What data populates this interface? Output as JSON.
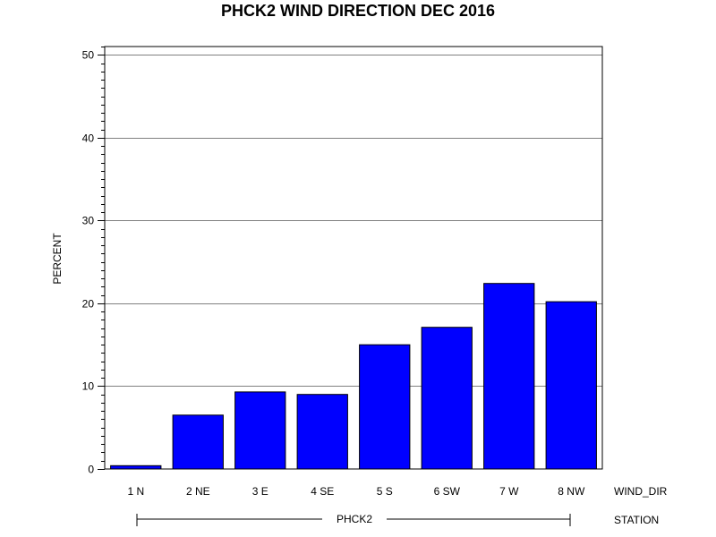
{
  "chart_data": {
    "type": "bar",
    "title": "PHCK2 WIND DIRECTION DEC 2016",
    "ylabel": "PERCENT",
    "xlabel": "WIND_DIR",
    "group_label": "STATION",
    "group_value": "PHCK2",
    "categories": [
      "1 N",
      "2 NE",
      "3 E",
      "4 SE",
      "5 S",
      "6 SW",
      "7 W",
      "8 NW"
    ],
    "values": [
      0.4,
      6.5,
      9.3,
      9.0,
      15.0,
      17.1,
      22.4,
      20.2
    ],
    "ylim": [
      0,
      51
    ],
    "yticks": [
      0,
      10,
      20,
      30,
      40,
      50
    ],
    "grid": true,
    "bar_color": "#0000ff"
  }
}
